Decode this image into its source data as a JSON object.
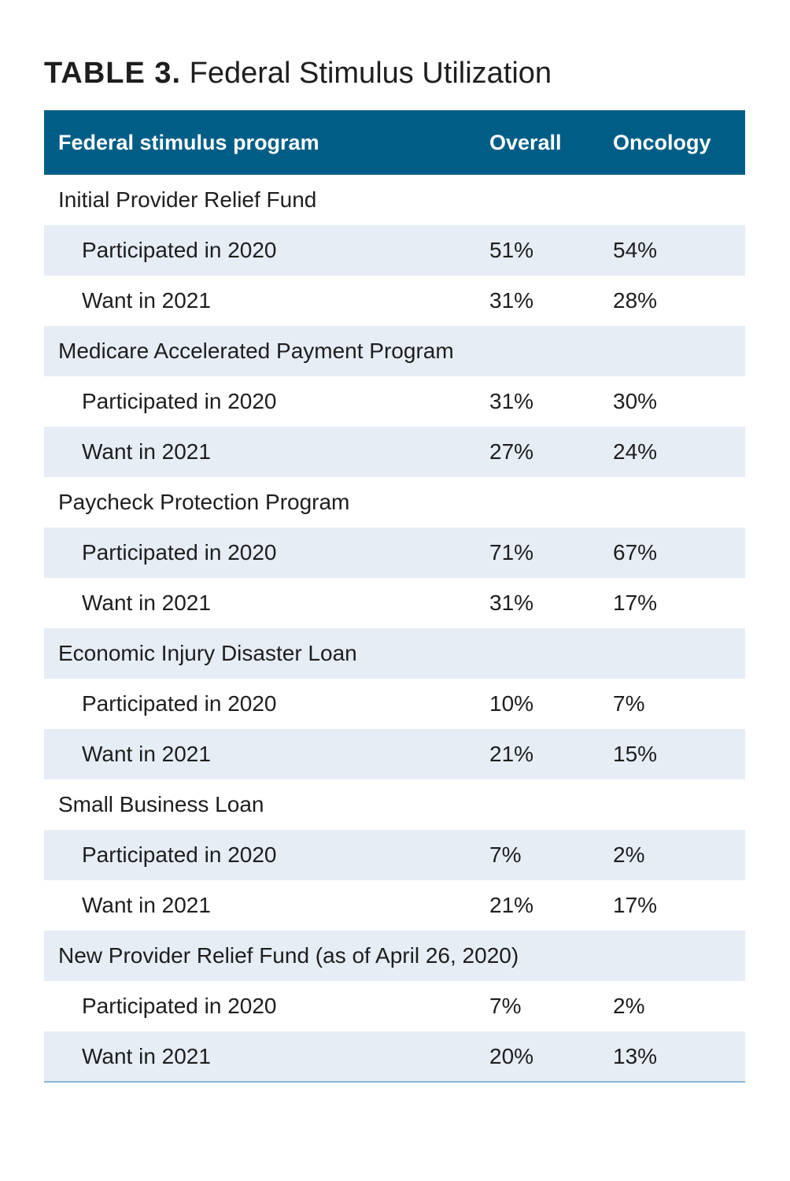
{
  "title": {
    "label": "TABLE 3.",
    "text": "Federal Stimulus Utilization"
  },
  "table": {
    "headers": [
      "Federal stimulus program",
      "Overall",
      "Oncology"
    ],
    "groups": [
      {
        "name": "Initial Provider Relief Fund",
        "rows": [
          {
            "label": "Participated in 2020",
            "overall": "51%",
            "oncology": "54%"
          },
          {
            "label": "Want in 2021",
            "overall": "31%",
            "oncology": "28%"
          }
        ]
      },
      {
        "name": "Medicare Accelerated Payment Program",
        "rows": [
          {
            "label": "Participated in 2020",
            "overall": "31%",
            "oncology": "30%"
          },
          {
            "label": "Want in 2021",
            "overall": "27%",
            "oncology": "24%"
          }
        ]
      },
      {
        "name": "Paycheck Protection Program",
        "rows": [
          {
            "label": "Participated in 2020",
            "overall": "71%",
            "oncology": "67%"
          },
          {
            "label": "Want in 2021",
            "overall": "31%",
            "oncology": "17%"
          }
        ]
      },
      {
        "name": "Economic Injury Disaster Loan",
        "rows": [
          {
            "label": "Participated in 2020",
            "overall": "10%",
            "oncology": "7%"
          },
          {
            "label": "Want in 2021",
            "overall": "21%",
            "oncology": "15%"
          }
        ]
      },
      {
        "name": "Small Business Loan",
        "rows": [
          {
            "label": "Participated in 2020",
            "overall": "7%",
            "oncology": "2%"
          },
          {
            "label": "Want in 2021",
            "overall": "21%",
            "oncology": "17%"
          }
        ]
      },
      {
        "name": "New Provider Relief Fund (as of April 26, 2020)",
        "rows": [
          {
            "label": "Participated in 2020",
            "overall": "7%",
            "oncology": "2%"
          },
          {
            "label": "Want in 2021",
            "overall": "20%",
            "oncology": "13%"
          }
        ]
      }
    ]
  },
  "colors": {
    "header_bg": "#005e86",
    "header_text": "#ffffff",
    "shade_row": "#e6edf5",
    "bottom_rule": "#8db4d1"
  }
}
